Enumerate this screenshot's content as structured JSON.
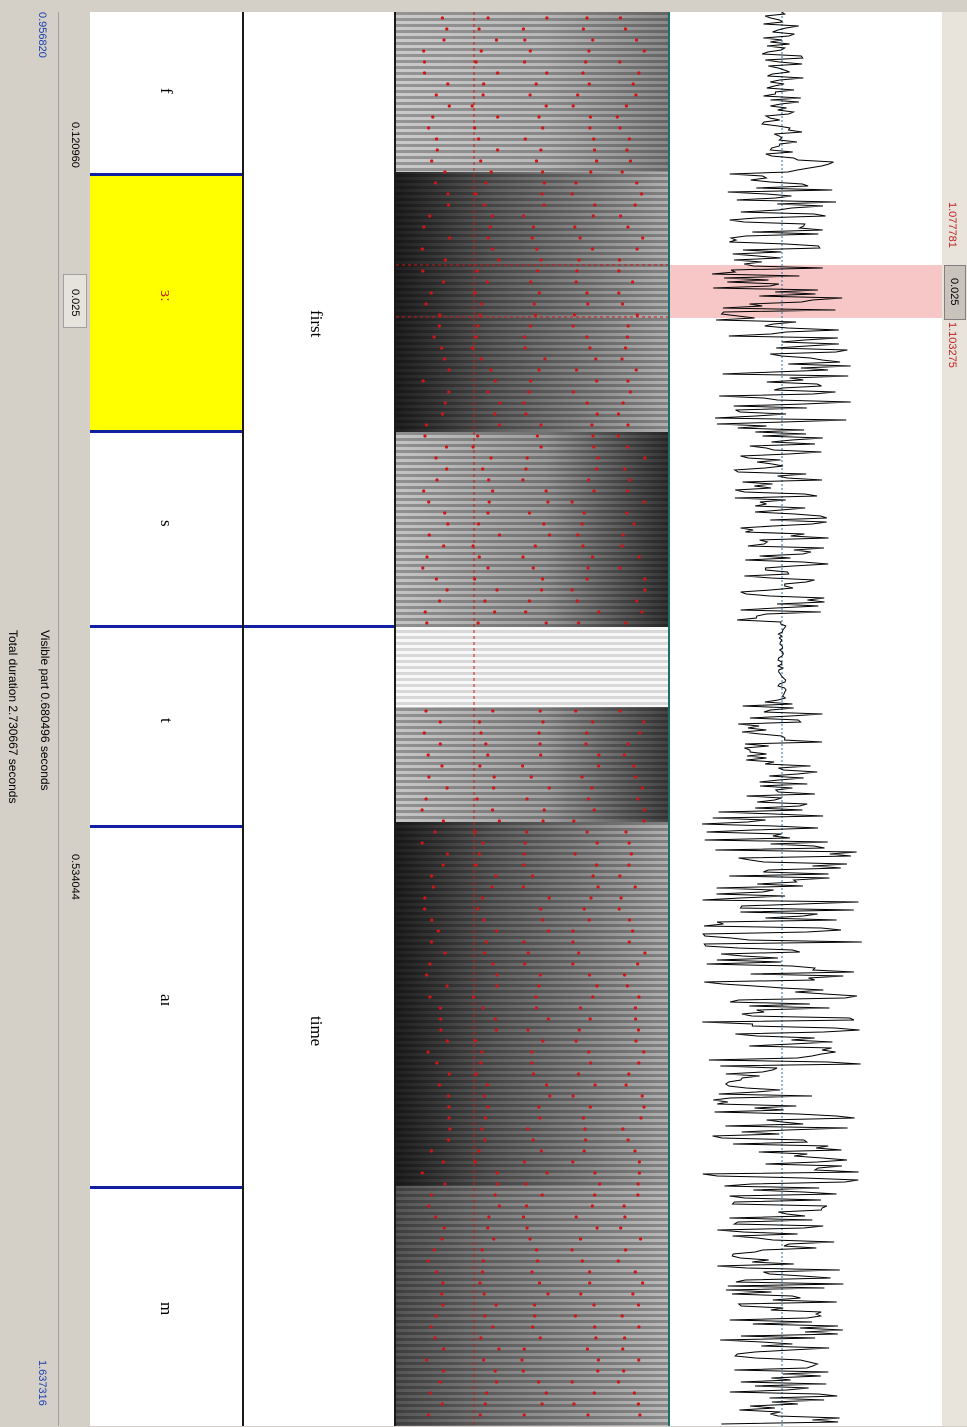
{
  "window": {
    "left_time": "0.956820",
    "right_time": "1.637316"
  },
  "selection": {
    "start": "1.077781",
    "end": "1.103275",
    "duration": "0.025"
  },
  "status": {
    "visible_part": "Visible part 0.680496 seconds",
    "total_duration": "Total duration 2.730667 seconds"
  },
  "duration_row": {
    "left_piece": "0.120960",
    "selected_piece": "0.025",
    "right_piece": "0.534044"
  },
  "tiers": {
    "words": [
      {
        "label": "first"
      },
      {
        "label": "time"
      }
    ],
    "phones": [
      {
        "label": "f",
        "selected": false
      },
      {
        "label": "ɜː",
        "selected": true
      },
      {
        "label": "s",
        "selected": false
      },
      {
        "label": "t",
        "selected": false
      },
      {
        "label": "aɪ",
        "selected": false
      },
      {
        "label": "m",
        "selected": false
      }
    ]
  },
  "colors": {
    "selection_fill": "#f7c7c7",
    "selection_text": "#c02020",
    "time_text": "#1a3fb0",
    "boundary": "#1020a0",
    "selected_interval": "#ffff00",
    "formant_dots": "#d21414"
  }
}
